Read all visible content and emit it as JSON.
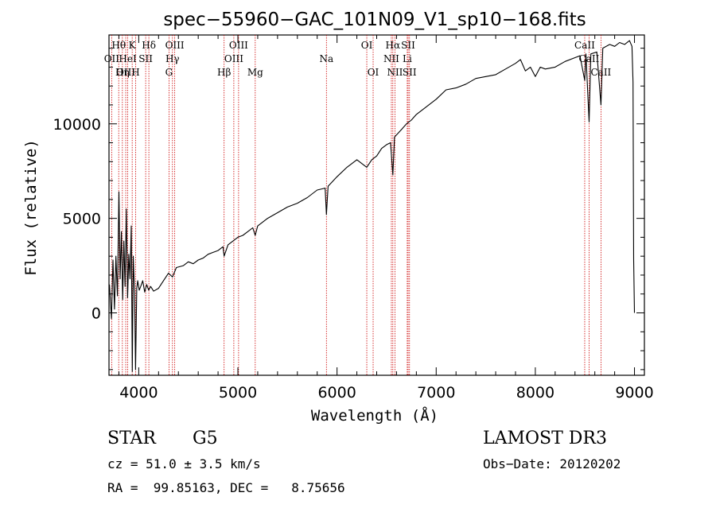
{
  "chart_data": {
    "type": "line",
    "title": "spec−55960−GAC_101N09_V1_sp10−168.fits",
    "xlabel": "Wavelength (Å)",
    "ylabel": "Flux (relative)",
    "xlim": [
      3700,
      9100
    ],
    "ylim": [
      -3300,
      14700
    ],
    "xticks": [
      4000,
      5000,
      6000,
      7000,
      8000,
      9000
    ],
    "yticks": [
      0,
      5000,
      10000
    ],
    "tick_labels_x": [
      "4000",
      "5000",
      "6000",
      "7000",
      "8000",
      "9000"
    ],
    "tick_labels_y": [
      "0",
      "5000",
      "10000"
    ],
    "series": [
      {
        "name": "flux",
        "points": [
          [
            3705,
            1500
          ],
          [
            3725,
            -300
          ],
          [
            3740,
            2800
          ],
          [
            3755,
            200
          ],
          [
            3770,
            3000
          ],
          [
            3785,
            900
          ],
          [
            3800,
            6400
          ],
          [
            3812,
            1800
          ],
          [
            3825,
            4300
          ],
          [
            3838,
            700
          ],
          [
            3850,
            3800
          ],
          [
            3862,
            1400
          ],
          [
            3875,
            5500
          ],
          [
            3888,
            800
          ],
          [
            3900,
            3100
          ],
          [
            3912,
            1800
          ],
          [
            3925,
            4600
          ],
          [
            3935,
            -3100
          ],
          [
            3945,
            3000
          ],
          [
            3958,
            1000
          ],
          [
            3968,
            -3000
          ],
          [
            3980,
            1300
          ],
          [
            3990,
            1700
          ],
          [
            4005,
            1200
          ],
          [
            4020,
            1400
          ],
          [
            4040,
            1700
          ],
          [
            4060,
            1100
          ],
          [
            4080,
            1500
          ],
          [
            4100,
            1200
          ],
          [
            4120,
            1400
          ],
          [
            4150,
            1150
          ],
          [
            4200,
            1300
          ],
          [
            4250,
            1700
          ],
          [
            4300,
            2100
          ],
          [
            4340,
            1900
          ],
          [
            4380,
            2400
          ],
          [
            4450,
            2500
          ],
          [
            4500,
            2700
          ],
          [
            4550,
            2600
          ],
          [
            4600,
            2800
          ],
          [
            4650,
            2900
          ],
          [
            4700,
            3100
          ],
          [
            4750,
            3200
          ],
          [
            4800,
            3300
          ],
          [
            4850,
            3500
          ],
          [
            4861,
            3000
          ],
          [
            4900,
            3600
          ],
          [
            4950,
            3800
          ],
          [
            5000,
            4000
          ],
          [
            5050,
            4100
          ],
          [
            5100,
            4300
          ],
          [
            5150,
            4500
          ],
          [
            5175,
            4100
          ],
          [
            5200,
            4600
          ],
          [
            5300,
            5000
          ],
          [
            5400,
            5300
          ],
          [
            5500,
            5600
          ],
          [
            5600,
            5800
          ],
          [
            5700,
            6100
          ],
          [
            5800,
            6500
          ],
          [
            5880,
            6600
          ],
          [
            5893,
            5200
          ],
          [
            5910,
            6700
          ],
          [
            6000,
            7200
          ],
          [
            6100,
            7700
          ],
          [
            6200,
            8100
          ],
          [
            6300,
            7700
          ],
          [
            6350,
            8100
          ],
          [
            6400,
            8300
          ],
          [
            6450,
            8700
          ],
          [
            6500,
            8900
          ],
          [
            6540,
            9000
          ],
          [
            6563,
            7300
          ],
          [
            6580,
            9300
          ],
          [
            6650,
            9700
          ],
          [
            6700,
            10000
          ],
          [
            6750,
            10200
          ],
          [
            6800,
            10500
          ],
          [
            6900,
            10900
          ],
          [
            7000,
            11300
          ],
          [
            7100,
            11800
          ],
          [
            7200,
            11900
          ],
          [
            7300,
            12100
          ],
          [
            7400,
            12400
          ],
          [
            7500,
            12500
          ],
          [
            7600,
            12600
          ],
          [
            7700,
            12900
          ],
          [
            7800,
            13200
          ],
          [
            7850,
            13400
          ],
          [
            7900,
            12800
          ],
          [
            7950,
            13000
          ],
          [
            8000,
            12500
          ],
          [
            8050,
            13000
          ],
          [
            8100,
            12900
          ],
          [
            8200,
            13000
          ],
          [
            8300,
            13300
          ],
          [
            8400,
            13500
          ],
          [
            8450,
            13600
          ],
          [
            8498,
            12300
          ],
          [
            8510,
            13700
          ],
          [
            8542,
            10100
          ],
          [
            8560,
            13700
          ],
          [
            8620,
            13800
          ],
          [
            8662,
            11000
          ],
          [
            8680,
            14000
          ],
          [
            8750,
            14200
          ],
          [
            8800,
            14100
          ],
          [
            8850,
            14300
          ],
          [
            8900,
            14200
          ],
          [
            8950,
            14400
          ],
          [
            8975,
            14100
          ],
          [
            8985,
            12200
          ],
          [
            8992,
            2800
          ],
          [
            9000,
            0
          ]
        ]
      }
    ],
    "lines": [
      {
        "name": "Hθ",
        "x": 3798,
        "row": 1
      },
      {
        "name": "OII",
        "x": 3727,
        "row": 2
      },
      {
        "name": "OIII",
        "x": 3869,
        "row": 3
      },
      {
        "name": "K",
        "x": 3934,
        "row": 1
      },
      {
        "name": "HeI",
        "x": 3889,
        "row": 2
      },
      {
        "name": "Hη",
        "x": 3835,
        "row": 3
      },
      {
        "name": "SII",
        "x": 4070,
        "row": 2
      },
      {
        "name": "H",
        "x": 3969,
        "row": 3
      },
      {
        "name": "Hδ",
        "x": 4102,
        "row": 1
      },
      {
        "name": "OIII",
        "x": 4363,
        "row": 1
      },
      {
        "name": "Hγ",
        "x": 4340,
        "row": 2
      },
      {
        "name": "G",
        "x": 4305,
        "row": 3
      },
      {
        "name": "Hβ",
        "x": 4861,
        "row": 3
      },
      {
        "name": "OIII",
        "x": 5007,
        "row": 1
      },
      {
        "name": "OIII",
        "x": 4959,
        "row": 2
      },
      {
        "name": "Mg",
        "x": 5175,
        "row": 3
      },
      {
        "name": "Na",
        "x": 5893,
        "row": 2
      },
      {
        "name": "OI",
        "x": 6300,
        "row": 1
      },
      {
        "name": "OI",
        "x": 6364,
        "row": 3
      },
      {
        "name": "Hα",
        "x": 6563,
        "row": 1
      },
      {
        "name": "NII",
        "x": 6548,
        "row": 2
      },
      {
        "name": "NII",
        "x": 6584,
        "row": 3
      },
      {
        "name": "SII",
        "x": 6717,
        "row": 1
      },
      {
        "name": "Li",
        "x": 6708,
        "row": 2
      },
      {
        "name": "SII",
        "x": 6731,
        "row": 3
      },
      {
        "name": "CaII",
        "x": 8498,
        "row": 1
      },
      {
        "name": "CaII",
        "x": 8542,
        "row": 2
      },
      {
        "name": "CaII",
        "x": 8662,
        "row": 3
      }
    ],
    "colors": {
      "spectrum": "#000000",
      "line_marker": "#cc0000"
    }
  },
  "info": {
    "class": "STAR",
    "subclass": "G5",
    "survey": "LAMOST DR3",
    "cz": "cz = 51.0 ± 3.5 km/s",
    "obs_date": "Obs−Date: 20120202",
    "radec": "RA =  99.85163, DEC =   8.75656"
  }
}
